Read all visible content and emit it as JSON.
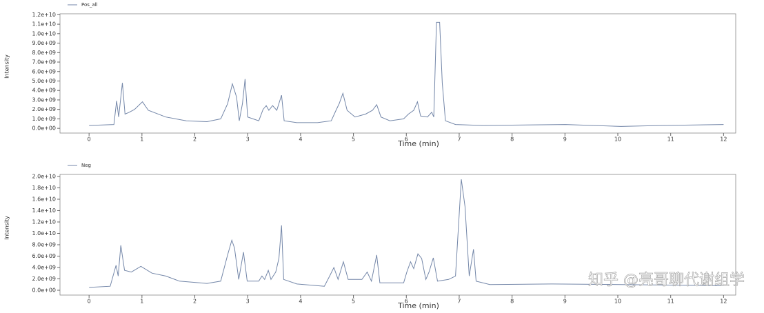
{
  "chart_data": [
    {
      "type": "line",
      "xlabel": "Time (min)",
      "ylabel": "Intensity",
      "xlim": [
        -0.55,
        12.23
      ],
      "ylim": [
        -500000000,
        12100000000
      ],
      "xticks": [
        0,
        1,
        2,
        3,
        4,
        5,
        6,
        7,
        8,
        9,
        10,
        11,
        12
      ],
      "yticks": [
        {
          "value": 0,
          "label": "0.0e+00"
        },
        {
          "value": 1000000000,
          "label": "1.0e+09"
        },
        {
          "value": 2000000000,
          "label": "2.0e+09"
        },
        {
          "value": 3000000000,
          "label": "3.0e+09"
        },
        {
          "value": 4000000000,
          "label": "4.0e+09"
        },
        {
          "value": 5000000000,
          "label": "5.0e+09"
        },
        {
          "value": 6000000000,
          "label": "6.0e+09"
        },
        {
          "value": 7000000000,
          "label": "7.0e+09"
        },
        {
          "value": 8000000000,
          "label": "8.0e+09"
        },
        {
          "value": 9000000000,
          "label": "9.0e+09"
        },
        {
          "value": 10000000000,
          "label": "1.0e+10"
        },
        {
          "value": 11000000000,
          "label": "1.1e+10"
        },
        {
          "value": 12000000000,
          "label": "1.2e+10"
        }
      ],
      "x": [
        0,
        0.47,
        0.52,
        0.56,
        0.63,
        0.68,
        0.76,
        0.86,
        1.01,
        1.12,
        1.45,
        1.84,
        2.23,
        2.49,
        2.62,
        2.71,
        2.79,
        2.84,
        2.9,
        2.95,
        3.0,
        3.21,
        3.29,
        3.35,
        3.4,
        3.47,
        3.55,
        3.64,
        3.69,
        3.93,
        4.32,
        4.58,
        4.67,
        4.73,
        4.8,
        4.88,
        5.03,
        5.23,
        5.36,
        5.44,
        5.52,
        5.69,
        5.95,
        6.04,
        6.14,
        6.21,
        6.27,
        6.4,
        6.48,
        6.52,
        6.57,
        6.63,
        6.68,
        6.74,
        6.93,
        7.45,
        9.01,
        10.06,
        10.84,
        12.0
      ],
      "series": [
        {
          "name": "Pos_all",
          "color": "#7386a8",
          "values": [
            300000000.0,
            400000000.0,
            2900000000.0,
            1200000000.0,
            4800000000.0,
            1500000000.0,
            1700000000.0,
            2000000000.0,
            2800000000.0,
            1900000000.0,
            1200000000.0,
            800000000.0,
            700000000.0,
            1000000000.0,
            2600000000.0,
            4700000000.0,
            3300000000.0,
            800000000.0,
            2600000000.0,
            5200000000.0,
            1200000000.0,
            800000000.0,
            2000000000.0,
            2400000000.0,
            1900000000.0,
            2400000000.0,
            1900000000.0,
            3500000000.0,
            800000000.0,
            600000000.0,
            600000000.0,
            800000000.0,
            1900000000.0,
            2600000000.0,
            3700000000.0,
            1900000000.0,
            1200000000.0,
            1500000000.0,
            1900000000.0,
            2500000000.0,
            1200000000.0,
            800000000.0,
            1000000000.0,
            1500000000.0,
            1900000000.0,
            2800000000.0,
            1300000000.0,
            1200000000.0,
            1700000000.0,
            1200000000.0,
            11200000000.0,
            11200000000.0,
            4800000000.0,
            800000000.0,
            400000000.0,
            300000000.0,
            400000000.0,
            200000000.0,
            300000000.0,
            400000000.0
          ]
        }
      ]
    },
    {
      "type": "line",
      "xlabel": "Time (min)",
      "ylabel": "Intensity",
      "xlim": [
        -0.55,
        12.23
      ],
      "ylim": [
        -850000000,
        20360000000
      ],
      "xticks": [
        0,
        1,
        2,
        3,
        4,
        5,
        6,
        7,
        8,
        9,
        10,
        11,
        12
      ],
      "yticks": [
        {
          "value": 0,
          "label": "0.0e+00"
        },
        {
          "value": 2000000000,
          "label": "2.0e+09"
        },
        {
          "value": 4000000000,
          "label": "4.0e+09"
        },
        {
          "value": 6000000000,
          "label": "6.0e+09"
        },
        {
          "value": 8000000000,
          "label": "8.0e+09"
        },
        {
          "value": 10000000000,
          "label": "1.0e+10"
        },
        {
          "value": 12000000000,
          "label": "1.2e+10"
        },
        {
          "value": 14000000000,
          "label": "1.4e+10"
        },
        {
          "value": 16000000000,
          "label": "1.6e+10"
        },
        {
          "value": 18000000000,
          "label": "1.8e+10"
        },
        {
          "value": 20000000000,
          "label": "2.0e+10"
        }
      ],
      "x": [
        0,
        0.4,
        0.51,
        0.55,
        0.6,
        0.67,
        0.8,
        0.98,
        1.19,
        1.45,
        1.71,
        2.23,
        2.49,
        2.62,
        2.7,
        2.75,
        2.83,
        2.92,
        2.99,
        3.21,
        3.27,
        3.32,
        3.39,
        3.44,
        3.53,
        3.59,
        3.64,
        3.68,
        3.93,
        4.45,
        4.55,
        4.63,
        4.71,
        4.81,
        4.9,
        5.16,
        5.26,
        5.34,
        5.44,
        5.5,
        5.95,
        6.01,
        6.08,
        6.14,
        6.22,
        6.29,
        6.37,
        6.43,
        6.51,
        6.59,
        6.8,
        6.93,
        7.04,
        7.11,
        7.19,
        7.27,
        7.32,
        7.58,
        8.75,
        10.06,
        12.0
      ],
      "series": [
        {
          "name": "Neg",
          "color": "#7386a8",
          "values": [
            500000000.0,
            700000000.0,
            4400000000.0,
            2500000000.0,
            7900000000.0,
            3500000000.0,
            3200000000.0,
            4200000000.0,
            3000000000.0,
            2500000000.0,
            1600000000.0,
            1200000000.0,
            1600000000.0,
            6200000000.0,
            8800000000.0,
            7400000000.0,
            1900000000.0,
            6700000000.0,
            1600000000.0,
            1600000000.0,
            2500000000.0,
            1900000000.0,
            3500000000.0,
            1900000000.0,
            3200000000.0,
            5600000000.0,
            11400000000.0,
            1900000000.0,
            1100000000.0,
            700000000.0,
            2500000000.0,
            4000000000.0,
            1900000000.0,
            5000000000.0,
            1900000000.0,
            1900000000.0,
            3200000000.0,
            1600000000.0,
            6200000000.0,
            1300000000.0,
            1300000000.0,
            3200000000.0,
            5000000000.0,
            3800000000.0,
            6400000000.0,
            5600000000.0,
            1900000000.0,
            3200000000.0,
            5700000000.0,
            1600000000.0,
            1900000000.0,
            2500000000.0,
            19500000000.0,
            14700000000.0,
            2500000000.0,
            7200000000.0,
            1600000000.0,
            1000000000.0,
            1100000000.0,
            1000000000.0,
            800000000.0
          ]
        }
      ]
    }
  ],
  "watermark": "知乎 @亮哥聊代谢组学"
}
